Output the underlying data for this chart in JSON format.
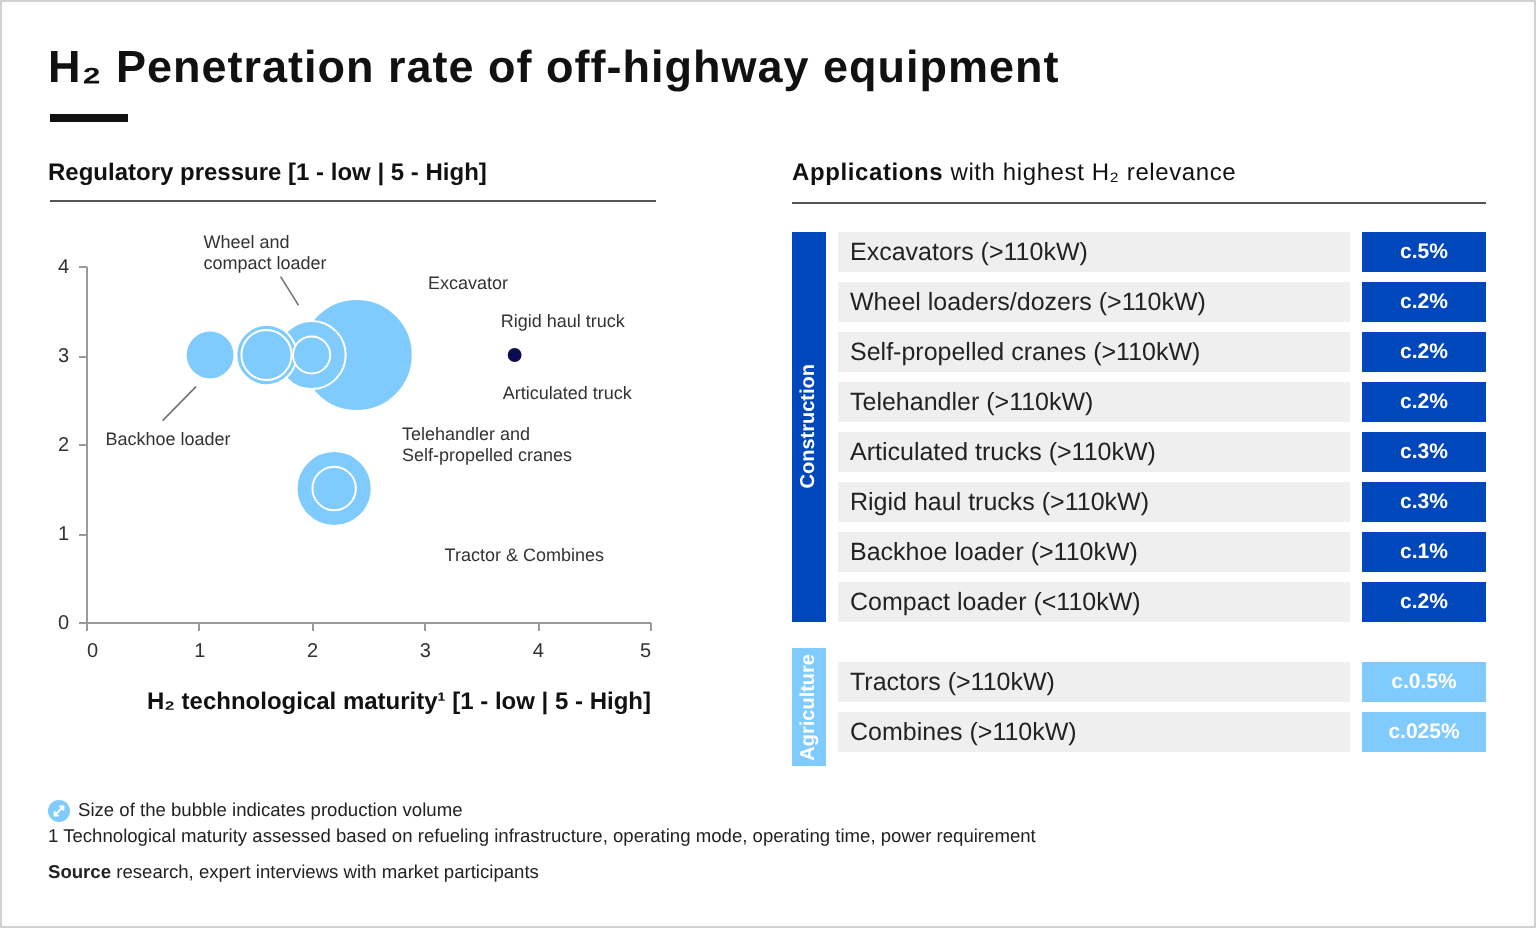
{
  "chart_data": [
    {
      "type": "bubble",
      "title": "H₂ Penetration rate of off-highway equipment",
      "ylabel": "Regulatory pressure [1 - low | 5 - High]",
      "xlabel": "H₂ technological maturity¹ [1 - low | 5 - High]",
      "x": [
        2.4,
        2.0,
        2.0,
        1.6,
        1.6,
        1.1,
        2.2,
        2.2,
        3.8
      ],
      "values": [
        3,
        3,
        3,
        3,
        3,
        3,
        1.5,
        1.5,
        3
      ],
      "sizes": [
        1,
        0.37,
        0.11,
        0.29,
        0.2,
        0.19,
        0.15,
        0.45,
        0.02
      ],
      "colors": [
        "#80cbfd",
        "#80cbfd",
        "#80cbfd",
        "#80cbfd",
        "#80cbfd",
        "#80cbfd",
        "#80cbfd",
        "#80cbfd",
        "#0b0b4f"
      ],
      "xlim": [
        0,
        5
      ],
      "xticks": [
        0,
        1,
        2,
        3,
        4,
        5
      ],
      "ylim": [
        0,
        4
      ],
      "yticks": [
        0,
        1,
        2,
        3,
        4
      ],
      "annotations": [
        {
          "text": "Rigid haul truck",
          "x": 3.8,
          "y": 3
        },
        {
          "text": "Articulated truck",
          "x": 3.8,
          "y": 3
        },
        "Wheel and\ncompact loader",
        "Excavator",
        "Backhoe loader",
        "Telehandler and\nSelf-propelled cranes",
        "Tractor & Combines",
        "Size of the bubble indicates production volume",
        "1 Technological maturity assessed based on refueling infrastructure, operating mode, operating time, power requirement",
        "Source research, expert interviews with market participants"
      ]
    },
    {
      "type": "other",
      "title": "Applications with highest H₂ relevance",
      "ylabel": "Construction",
      "color": "#0047bb",
      "y_categories": [
        "Excavators (>110kW)",
        "Wheel loaders/dozers (>110kW)",
        "Self-propelled cranes (>110kW)",
        "Telehandler (>110kW)",
        "Articulated trucks (>110kW)",
        "Rigid haul trucks (>110kW)",
        "Backhoe loader (>110kW)",
        "Compact loader (<110kW)"
      ],
      "y2_categories": [
        "c.5%",
        "c.2%",
        "c.2%",
        "c.2%",
        "c.3%",
        "c.3%",
        "c.1%",
        "c.2%"
      ]
    },
    {
      "type": "other",
      "ylabel": "Agriculture",
      "color": "#80cbfd",
      "y_categories": [
        "Tractors (>110kW)",
        "Combines (>110kW)"
      ],
      "y2_categories": [
        "c.0.5%",
        "c.025%"
      ]
    }
  ]
}
